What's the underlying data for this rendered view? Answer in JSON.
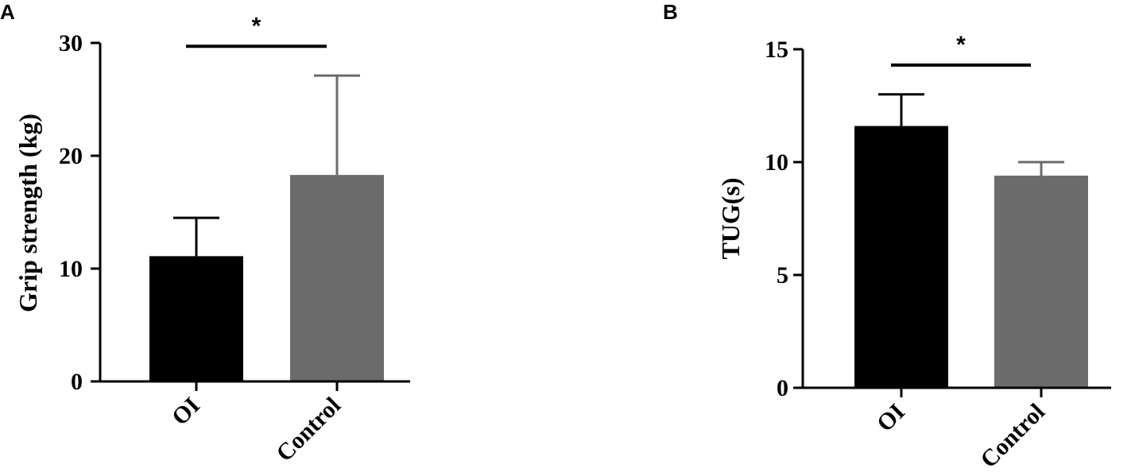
{
  "chart_data": [
    {
      "type": "bar",
      "panel_label": "A",
      "title": "",
      "xlabel": "",
      "ylabel": "Grip strength (kg)",
      "categories": [
        "OI",
        "Control"
      ],
      "values": [
        11.1,
        18.3
      ],
      "errors": [
        3.4,
        8.8
      ],
      "bar_colors": [
        "#000000",
        "#6b6b6b"
      ],
      "ylim": [
        0,
        30
      ],
      "yticks": [
        "0",
        "10",
        "20",
        "30"
      ],
      "grid": false,
      "significance": {
        "from": 0,
        "to": 1,
        "level": 29.7,
        "mark": "*"
      }
    },
    {
      "type": "bar",
      "panel_label": "B",
      "title": "",
      "xlabel": "",
      "ylabel": "TUG(s)",
      "categories": [
        "OI",
        "Control"
      ],
      "values": [
        11.6,
        9.4
      ],
      "errors": [
        1.4,
        0.6
      ],
      "bar_colors": [
        "#000000",
        "#6b6b6b"
      ],
      "ylim": [
        0,
        15
      ],
      "yticks": [
        "0",
        "5",
        "10",
        "15"
      ],
      "grid": false,
      "significance": {
        "from": 0,
        "to": 1,
        "level": 14.3,
        "mark": "*"
      }
    }
  ]
}
